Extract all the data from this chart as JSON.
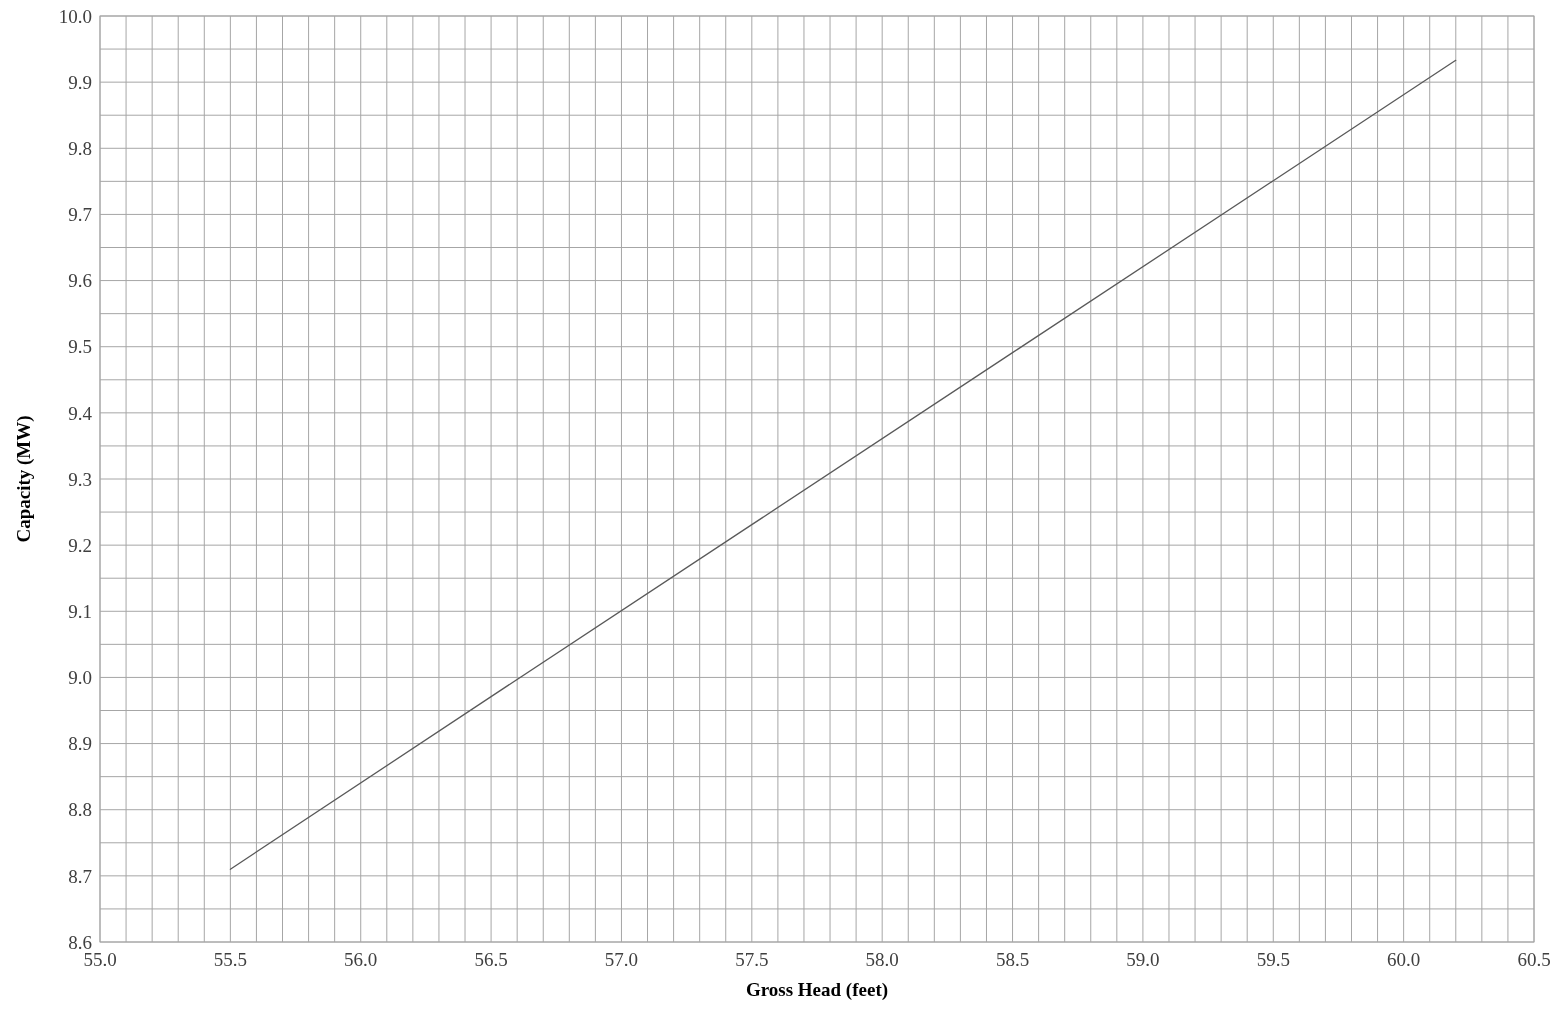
{
  "chart_data": {
    "type": "line",
    "xlabel": "Gross Head (feet)",
    "ylabel": "Capacity (MW)",
    "x": [
      55.5,
      56.5,
      57.5,
      58.5,
      59.5,
      60.2
    ],
    "series": [
      {
        "color": "#595959",
        "values": [
          8.71,
          8.971,
          9.231,
          9.491,
          9.751,
          9.933
        ]
      }
    ],
    "xlim": [
      55.0,
      60.5
    ],
    "ylim": [
      8.6,
      10.0
    ],
    "xticks": [
      {
        "value": 55.0,
        "label": "55.0"
      },
      {
        "value": 55.1,
        "label": null
      },
      {
        "value": 55.2,
        "label": null
      },
      {
        "value": 55.3,
        "label": null
      },
      {
        "value": 55.4,
        "label": null
      },
      {
        "value": 55.5,
        "label": "55.5"
      },
      {
        "value": 55.6,
        "label": null
      },
      {
        "value": 55.7,
        "label": null
      },
      {
        "value": 55.8,
        "label": null
      },
      {
        "value": 55.9,
        "label": null
      },
      {
        "value": 56.0,
        "label": "56.0"
      },
      {
        "value": 56.1,
        "label": null
      },
      {
        "value": 56.2,
        "label": null
      },
      {
        "value": 56.3,
        "label": null
      },
      {
        "value": 56.4,
        "label": null
      },
      {
        "value": 56.5,
        "label": "56.5"
      },
      {
        "value": 56.6,
        "label": null
      },
      {
        "value": 56.7,
        "label": null
      },
      {
        "value": 56.8,
        "label": null
      },
      {
        "value": 56.9,
        "label": null
      },
      {
        "value": 57.0,
        "label": "57.0"
      },
      {
        "value": 57.1,
        "label": null
      },
      {
        "value": 57.2,
        "label": null
      },
      {
        "value": 57.3,
        "label": null
      },
      {
        "value": 57.4,
        "label": null
      },
      {
        "value": 57.5,
        "label": "57.5"
      },
      {
        "value": 57.6,
        "label": null
      },
      {
        "value": 57.7,
        "label": null
      },
      {
        "value": 57.8,
        "label": null
      },
      {
        "value": 57.9,
        "label": null
      },
      {
        "value": 58.0,
        "label": "58.0"
      },
      {
        "value": 58.1,
        "label": null
      },
      {
        "value": 58.2,
        "label": null
      },
      {
        "value": 58.3,
        "label": null
      },
      {
        "value": 58.4,
        "label": null
      },
      {
        "value": 58.5,
        "label": "58.5"
      },
      {
        "value": 58.6,
        "label": null
      },
      {
        "value": 58.7,
        "label": null
      },
      {
        "value": 58.8,
        "label": null
      },
      {
        "value": 58.9,
        "label": null
      },
      {
        "value": 59.0,
        "label": "59.0"
      },
      {
        "value": 59.1,
        "label": null
      },
      {
        "value": 59.2,
        "label": null
      },
      {
        "value": 59.3,
        "label": null
      },
      {
        "value": 59.4,
        "label": null
      },
      {
        "value": 59.5,
        "label": "59.5"
      },
      {
        "value": 59.6,
        "label": null
      },
      {
        "value": 59.7,
        "label": null
      },
      {
        "value": 59.8,
        "label": null
      },
      {
        "value": 59.9,
        "label": null
      },
      {
        "value": 60.0,
        "label": "60.0"
      },
      {
        "value": 60.1,
        "label": null
      },
      {
        "value": 60.2,
        "label": null
      },
      {
        "value": 60.3,
        "label": null
      },
      {
        "value": 60.4,
        "label": null
      },
      {
        "value": 60.5,
        "label": "60.5"
      }
    ],
    "yticks": [
      {
        "value": 8.6,
        "label": "8.6"
      },
      {
        "value": 8.65,
        "label": null
      },
      {
        "value": 8.7,
        "label": "8.7"
      },
      {
        "value": 8.75,
        "label": null
      },
      {
        "value": 8.8,
        "label": "8.8"
      },
      {
        "value": 8.85,
        "label": null
      },
      {
        "value": 8.9,
        "label": "8.9"
      },
      {
        "value": 8.95,
        "label": null
      },
      {
        "value": 9.0,
        "label": "9.0"
      },
      {
        "value": 9.05,
        "label": null
      },
      {
        "value": 9.1,
        "label": "9.1"
      },
      {
        "value": 9.15,
        "label": null
      },
      {
        "value": 9.2,
        "label": "9.2"
      },
      {
        "value": 9.25,
        "label": null
      },
      {
        "value": 9.3,
        "label": "9.3"
      },
      {
        "value": 9.35,
        "label": null
      },
      {
        "value": 9.4,
        "label": "9.4"
      },
      {
        "value": 9.45,
        "label": null
      },
      {
        "value": 9.5,
        "label": "9.5"
      },
      {
        "value": 9.55,
        "label": null
      },
      {
        "value": 9.6,
        "label": "9.6"
      },
      {
        "value": 9.65,
        "label": null
      },
      {
        "value": 9.7,
        "label": "9.7"
      },
      {
        "value": 9.75,
        "label": null
      },
      {
        "value": 9.8,
        "label": "9.8"
      },
      {
        "value": 9.85,
        "label": null
      },
      {
        "value": 9.9,
        "label": "9.9"
      },
      {
        "value": 9.95,
        "label": null
      },
      {
        "value": 10.0,
        "label": "10.0"
      }
    ],
    "grid": true,
    "marker": "none",
    "line_style": "solid"
  }
}
